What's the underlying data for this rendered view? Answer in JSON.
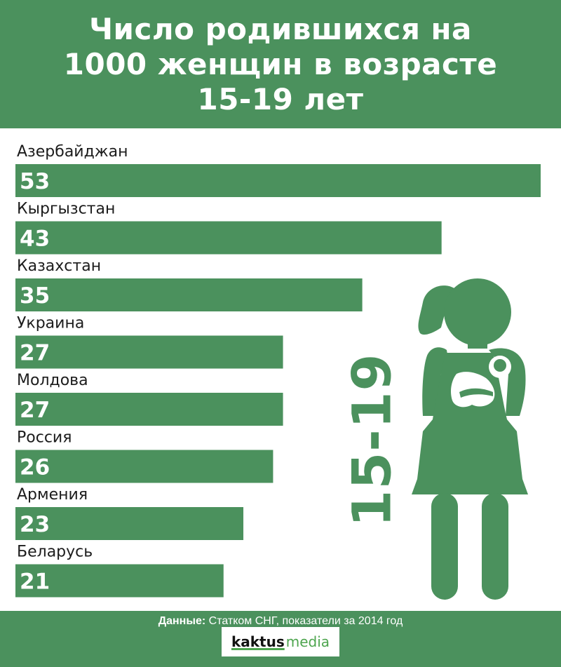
{
  "header": {
    "title_lines": [
      "Число родившихся на",
      "1000 женщин в возрасте",
      "15-19 лет"
    ]
  },
  "chart_data": {
    "type": "bar",
    "orientation": "horizontal",
    "title": "Число родившихся на 1000 женщин в возрасте 15-19 лет",
    "categories": [
      "Азербайджан",
      "Кыргызстан",
      "Казахстан",
      "Украина",
      "Молдова",
      "Россия",
      "Армения",
      "Беларусь"
    ],
    "values": [
      53,
      43,
      35,
      27,
      27,
      26,
      23,
      21
    ],
    "value_labels": [
      "53",
      "43",
      "35",
      "27",
      "27",
      "26",
      "23",
      "21"
    ],
    "grid": false,
    "legend": "none"
  },
  "illustration": {
    "side_text": "15-19",
    "icon": "mother-with-baby-icon"
  },
  "footer": {
    "source_label": "Данные:",
    "source_text": " Статком СНГ, показатели за 2014 год",
    "logo_kaktus": "kaktus",
    "logo_media": "media"
  },
  "colors": {
    "brand_green": "#4b915d",
    "logo_green": "#4ea54f",
    "text": "#1c1c1c",
    "background": "#ffffff"
  }
}
